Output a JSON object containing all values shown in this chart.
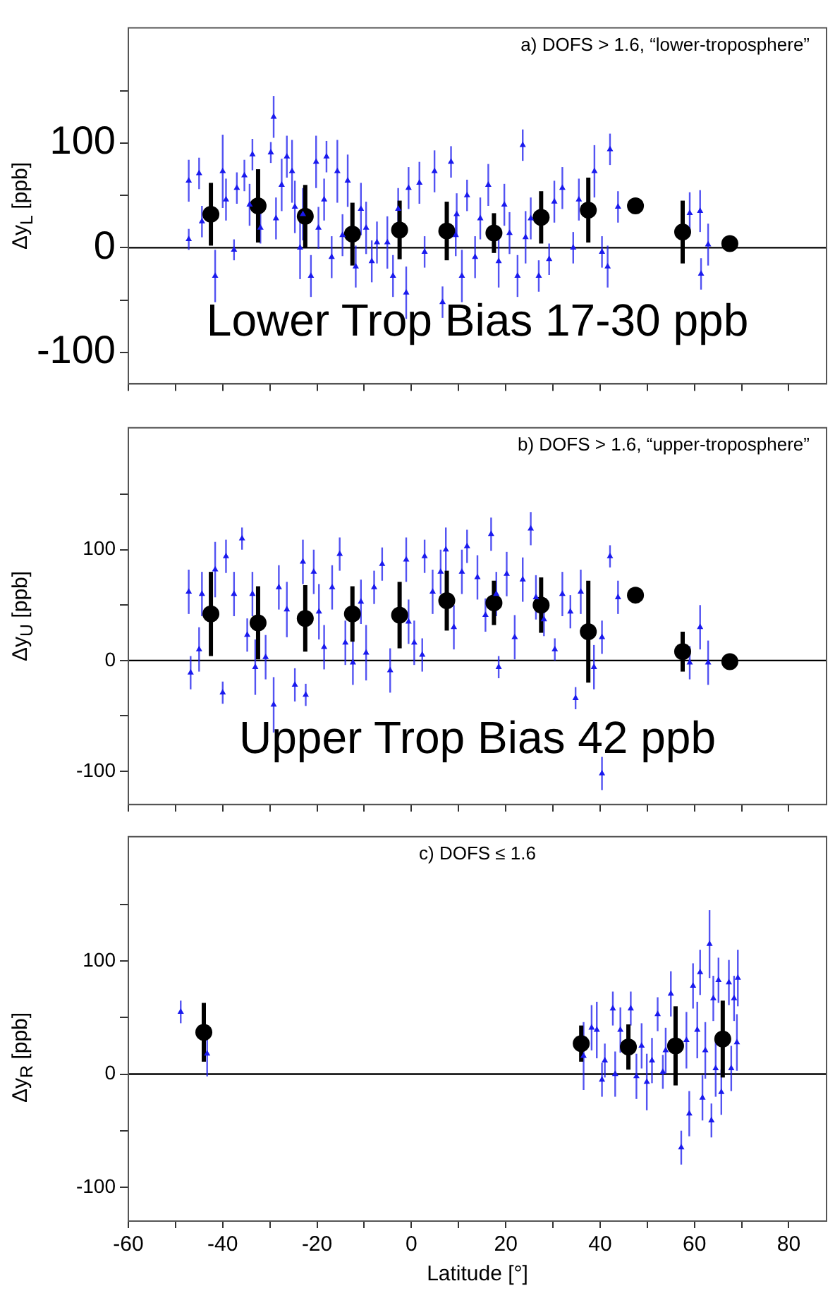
{
  "chart_data": [
    {
      "type": "scatter",
      "title": "a) DOFS > 1.6, “lower-troposphere”",
      "ylabel": "Δy$_{L}$ [ppb]",
      "annotations": [
        "Lower Trop Bias 17-30 ppb"
      ],
      "tick_labels": "y",
      "xlim": [
        -60,
        88
      ],
      "xticks": [
        -60,
        {
          "value": -50,
          "label": null
        },
        -40,
        {
          "value": -30,
          "label": null
        },
        -20,
        {
          "value": -10,
          "label": null
        },
        0,
        {
          "value": 10,
          "label": null
        },
        20,
        {
          "value": 30,
          "label": null
        },
        40,
        {
          "value": 50,
          "label": null
        },
        60,
        {
          "value": 70,
          "label": null
        },
        80
      ],
      "ylim": [
        -130,
        210
      ],
      "yticks": [
        -100,
        {
          "value": -50,
          "label": null
        },
        0,
        {
          "value": 50,
          "label": null
        },
        100,
        {
          "value": 150,
          "label": null
        }
      ],
      "ref_lines": [
        {
          "axis": "y",
          "value": 0,
          "color": "#000000"
        }
      ],
      "series": [
        {
          "color": "#1a1aee",
          "marker": "triangle",
          "x": [
            -47.2,
            -47.2,
            -45,
            -44.4,
            -41.6,
            -40,
            -39.3,
            -37.6,
            -37,
            -35.4,
            -34.3,
            -33.7,
            -32,
            -29.8,
            -29.2,
            -28.7,
            -27.5,
            -26.4,
            -25.3,
            -24.7,
            -23.6,
            -23,
            -21.3,
            -20.2,
            -19.7,
            -18.5,
            -18,
            -16.9,
            -15.7,
            -14.6,
            -13.5,
            -11.8,
            -10.7,
            -9.6,
            -8.4,
            -7.3,
            -5.1,
            -3.9,
            -2.8,
            -1.1,
            -0.6,
            1.7,
            2.8,
            4.9,
            6.6,
            9.4,
            8.4,
            9.6,
            10.7,
            11.8,
            13.5,
            14.6,
            16.3,
            18.5,
            19.7,
            20.8,
            22.5,
            23.6,
            24.2,
            25.3,
            27,
            29.2,
            30.3,
            32,
            34.3,
            35.5,
            38.8,
            40.4,
            41.6,
            42.1,
            43.8,
            59,
            61.2,
            61.4,
            62.9
          ],
          "values": [
            64,
            8,
            71,
            25,
            -27,
            73,
            46,
            -2,
            57,
            69,
            41,
            89,
            19,
            91,
            125,
            28,
            60,
            87,
            73,
            39,
            0,
            32,
            -27,
            82,
            19,
            46,
            87,
            -9,
            73,
            12,
            64,
            -18,
            37,
            19,
            -13,
            5,
            5,
            -27,
            37,
            -43,
            57,
            62,
            -4,
            73,
            -52,
            12,
            82,
            32,
            -27,
            50,
            -9,
            28,
            60,
            -13,
            41,
            14,
            -27,
            98,
            10,
            28,
            -27,
            -11,
            44,
            57,
            0,
            46,
            73,
            -4,
            -18,
            94,
            39,
            33,
            35,
            -25,
            3
          ],
          "errors": [
            20,
            10,
            15,
            15,
            25,
            35,
            20,
            10,
            15,
            15,
            20,
            15,
            15,
            10,
            20,
            20,
            25,
            20,
            30,
            25,
            30,
            25,
            20,
            25,
            20,
            20,
            15,
            20,
            30,
            20,
            25,
            20,
            25,
            25,
            20,
            20,
            25,
            20,
            20,
            25,
            20,
            20,
            15,
            20,
            15,
            20,
            15,
            20,
            25,
            15,
            20,
            20,
            20,
            25,
            20,
            20,
            20,
            15,
            25,
            20,
            15,
            15,
            20,
            20,
            15,
            20,
            25,
            15,
            20,
            15,
            15,
            20,
            20,
            15,
            20
          ]
        },
        {
          "color": "#000000",
          "marker": "circle",
          "x": [
            -42.5,
            -32.5,
            -22.5,
            -12.5,
            -2.5,
            7.5,
            17.5,
            27.5,
            37.5,
            47.5,
            57.5,
            67.5
          ],
          "values": [
            32,
            40,
            30,
            13,
            17,
            16,
            14,
            29,
            36,
            40,
            15,
            4
          ],
          "errors": [
            30,
            35,
            30,
            30,
            28,
            28,
            19,
            25,
            31,
            null,
            30,
            null
          ]
        }
      ]
    },
    {
      "type": "scatter",
      "title": "b) DOFS > 1.6, “upper-troposphere”",
      "ylabel": "Δy$_{U}$ [ppb]",
      "annotations": [
        "Upper Trop Bias 42 ppb"
      ],
      "tick_labels": "y",
      "xlim": [
        -60,
        88
      ],
      "xticks": [
        -60,
        {
          "value": -50,
          "label": null
        },
        -40,
        {
          "value": -30,
          "label": null
        },
        -20,
        {
          "value": -10,
          "label": null
        },
        0,
        {
          "value": 10,
          "label": null
        },
        20,
        {
          "value": 30,
          "label": null
        },
        40,
        {
          "value": 50,
          "label": null
        },
        60,
        {
          "value": 70,
          "label": null
        },
        80
      ],
      "ylim": [
        -130,
        210
      ],
      "yticks": [
        -100,
        {
          "value": -50,
          "label": null
        },
        0,
        {
          "value": 50,
          "label": null
        },
        100,
        {
          "value": 150,
          "label": null
        }
      ],
      "ref_lines": [
        {
          "axis": "y",
          "value": 0,
          "color": "#000000"
        }
      ],
      "series": [
        {
          "color": "#1a1aee",
          "marker": "triangle",
          "x": [
            -47.2,
            -46.8,
            -45,
            -44.4,
            -41.6,
            -40,
            -39.3,
            -37.6,
            -35.9,
            -34.8,
            -33.7,
            -33.1,
            -30.9,
            -29.2,
            -28.1,
            -26.4,
            -24.7,
            -23,
            -22.4,
            -20.7,
            -19.6,
            -18.5,
            -16.8,
            -15.2,
            -14,
            -12.4,
            -10.7,
            -9.6,
            -7.9,
            -6.2,
            -4.5,
            -0.6,
            -1.1,
            0.6,
            2.3,
            2.8,
            4.5,
            6.2,
            7.3,
            9,
            10.7,
            11.8,
            14,
            15.7,
            16.9,
            18,
            18.5,
            20.2,
            21.9,
            23.6,
            25.3,
            26.4,
            28.1,
            30.4,
            32,
            33.7,
            34.8,
            35.9,
            38.7,
            40.4,
            40.4,
            42.1,
            43.8,
            59,
            61.2,
            62.9
          ],
          "values": [
            62,
            -11,
            10,
            60,
            82,
            -29,
            94,
            60,
            110,
            23,
            60,
            -6,
            3,
            -40,
            66,
            46,
            -22,
            89,
            -31,
            80,
            44,
            12,
            66,
            96,
            16,
            -2,
            53,
            7,
            66,
            87,
            -9,
            35,
            91,
            16,
            5,
            94,
            62,
            80,
            100,
            30,
            80,
            103,
            75,
            41,
            114,
            60,
            -6,
            78,
            21,
            73,
            119,
            57,
            37,
            10,
            60,
            44,
            -34,
            62,
            -6,
            21,
            -102,
            94,
            57,
            -2,
            30,
            -2
          ],
          "errors": [
            20,
            15,
            20,
            20,
            25,
            10,
            15,
            20,
            10,
            15,
            20,
            25,
            20,
            25,
            20,
            25,
            15,
            20,
            10,
            20,
            25,
            20,
            20,
            15,
            20,
            20,
            20,
            25,
            15,
            15,
            20,
            20,
            20,
            20,
            15,
            15,
            20,
            20,
            20,
            20,
            20,
            15,
            20,
            15,
            15,
            20,
            10,
            20,
            20,
            20,
            15,
            20,
            15,
            10,
            20,
            15,
            10,
            20,
            20,
            15,
            15,
            10,
            15,
            15,
            20,
            20
          ]
        },
        {
          "color": "#000000",
          "marker": "circle",
          "x": [
            -42.5,
            -32.5,
            -22.5,
            -12.5,
            -2.5,
            7.5,
            17.5,
            27.5,
            37.5,
            47.5,
            57.5,
            67.5
          ],
          "values": [
            42,
            34,
            38,
            42,
            41,
            54,
            52,
            50,
            26,
            59,
            8,
            -1
          ],
          "errors": [
            38,
            33,
            30,
            25,
            30,
            27,
            20,
            25,
            46,
            null,
            18,
            null
          ]
        }
      ]
    },
    {
      "type": "scatter",
      "title": "c) DOFS ≤ 1.6",
      "ylabel": "Δy$_{R}$ [ppb]",
      "xlabel": "Latitude [°]",
      "xlim": [
        -60,
        88
      ],
      "xticks": [
        -60,
        {
          "value": -50,
          "label": null
        },
        -40,
        {
          "value": -30,
          "label": null
        },
        -20,
        {
          "value": -10,
          "label": null
        },
        0,
        {
          "value": 10,
          "label": null
        },
        20,
        {
          "value": 30,
          "label": null
        },
        40,
        {
          "value": 50,
          "label": null
        },
        60,
        {
          "value": 70,
          "label": null
        },
        80
      ],
      "ylim": [
        -130,
        210
      ],
      "yticks": [
        -100,
        {
          "value": -50,
          "label": null
        },
        0,
        {
          "value": 50,
          "label": null
        },
        100,
        {
          "value": 150,
          "label": null
        }
      ],
      "ref_lines": [
        {
          "axis": "y",
          "value": 0,
          "color": "#000000"
        }
      ],
      "series": [
        {
          "color": "#1a1aee",
          "marker": "triangle",
          "x": [
            -48.9,
            -43.3,
            36.5,
            38.2,
            39.3,
            40.4,
            41,
            42.7,
            43.2,
            44.3,
            46.5,
            47.7,
            48.8,
            49.9,
            51,
            52.2,
            53.3,
            55,
            53.9,
            57.2,
            58.3,
            58.9,
            59.7,
            60.6,
            61.2,
            61.7,
            62.3,
            63.2,
            63.6,
            64,
            64.5,
            65.1,
            65.7,
            67.3,
            67.8,
            68.4,
            69,
            69.2
          ],
          "values": [
            55,
            18,
            16,
            41,
            39,
            -5,
            12,
            58,
            0,
            39,
            58,
            -2,
            25,
            -7,
            12,
            53,
            2,
            71,
            21,
            -65,
            30,
            -35,
            78,
            39,
            90,
            -21,
            21,
            115,
            -41,
            67,
            5,
            83,
            -16,
            81,
            5,
            67,
            28,
            85
          ],
          "errors": [
            10,
            20,
            30,
            20,
            25,
            15,
            15,
            15,
            20,
            20,
            15,
            20,
            20,
            25,
            20,
            15,
            15,
            20,
            20,
            15,
            25,
            20,
            20,
            25,
            20,
            20,
            25,
            30,
            15,
            20,
            25,
            20,
            20,
            20,
            20,
            20,
            25,
            25
          ]
        },
        {
          "color": "#000000",
          "marker": "circle",
          "x": [
            -44,
            36,
            46,
            56,
            66
          ],
          "values": [
            37,
            27,
            24,
            25,
            31
          ],
          "errors": [
            26,
            16,
            20,
            35,
            34
          ]
        }
      ]
    }
  ]
}
